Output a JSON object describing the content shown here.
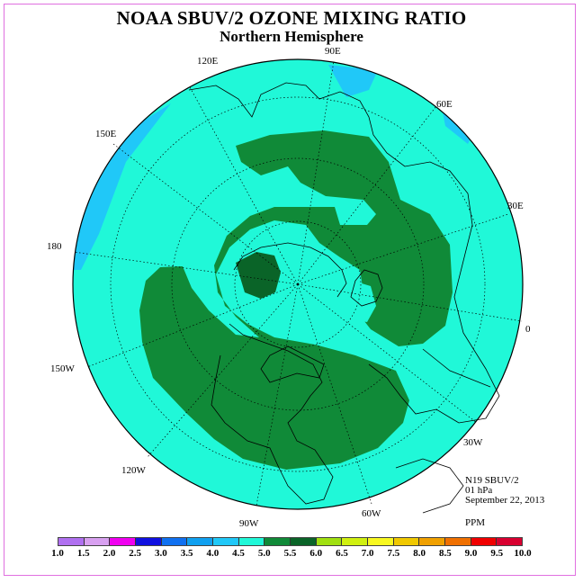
{
  "title": "NOAA SBUV/2 OZONE MIXING RATIO",
  "subtitle": "Northern Hemisphere",
  "longitude_labels": [
    "120E",
    "90E",
    "60E",
    "150E",
    "30E",
    "180",
    "0",
    "150W",
    "30W",
    "120W",
    "60W",
    "90W"
  ],
  "info": {
    "satellite": "N19 SBUV/2",
    "level": "01 hPa",
    "date": "September 22, 2013",
    "units": "PPM"
  },
  "colorbar": {
    "labels": [
      "1.0",
      "1.5",
      "2.0",
      "2.5",
      "3.0",
      "3.5",
      "4.0",
      "4.5",
      "5.0",
      "5.5",
      "6.0",
      "6.5",
      "7.0",
      "7.5",
      "8.0",
      "8.5",
      "9.0",
      "9.5",
      "10.0"
    ],
    "colors": [
      "#b070f0",
      "#d8a0f0",
      "#f000f0",
      "#1010e0",
      "#1070f0",
      "#10a0f0",
      "#20c8f8",
      "#20f8d8",
      "#108a38",
      "#0a6428",
      "#a0e010",
      "#d0f010",
      "#f8f820",
      "#f0c800",
      "#f0a000",
      "#f07000",
      "#f00000",
      "#d80030",
      "#8a5a38"
    ]
  },
  "map_colors": {
    "background": "#20f8d8",
    "mid": "#108a38",
    "high": "#0a6428",
    "low": "#20c8f8"
  }
}
